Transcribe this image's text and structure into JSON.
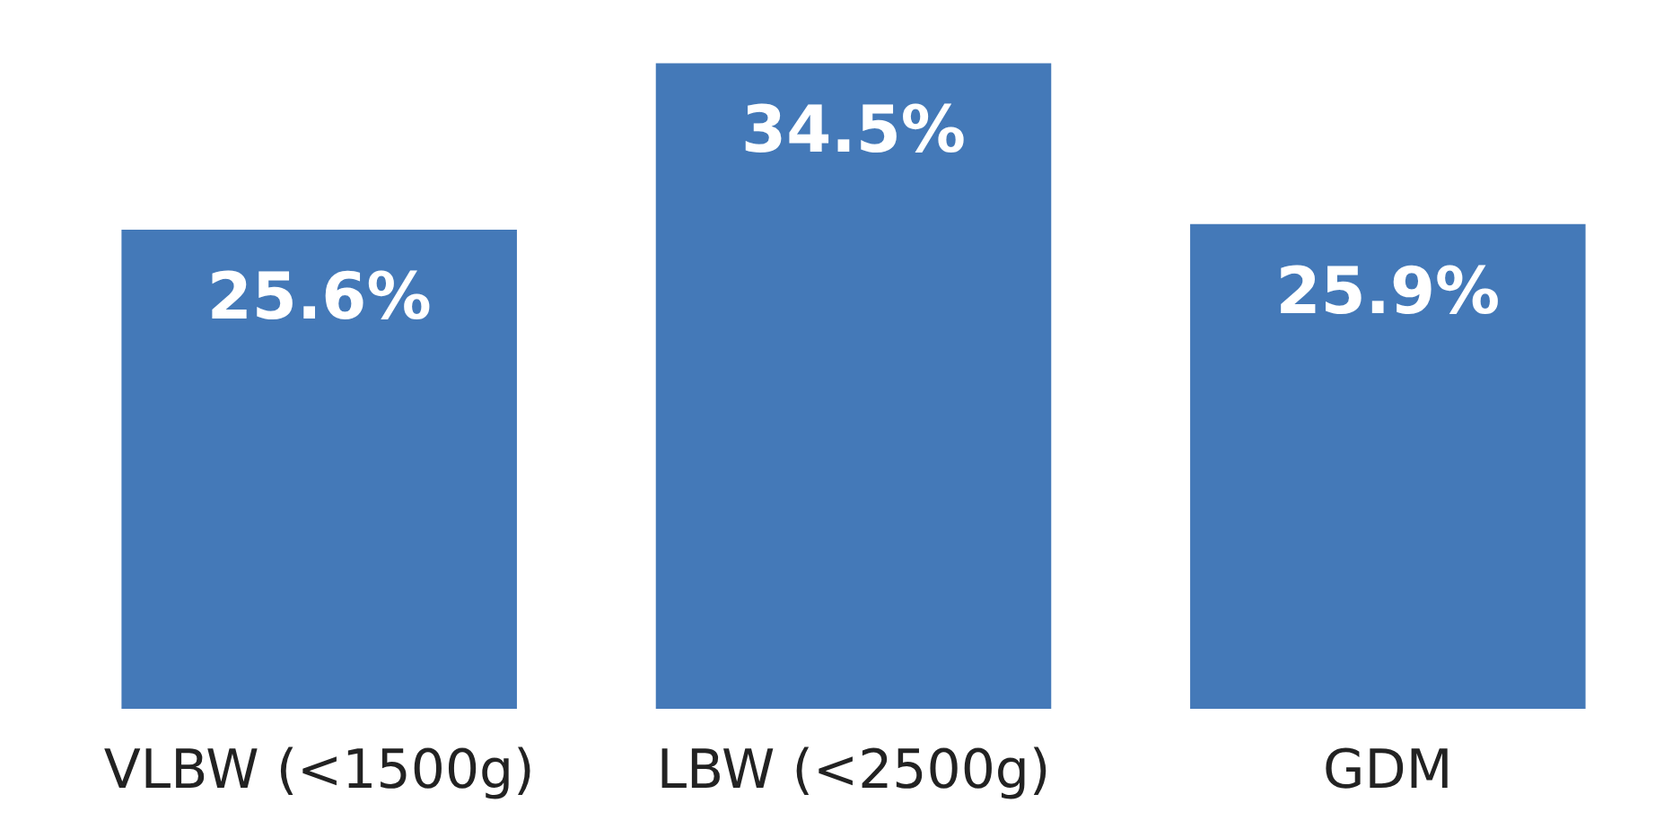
{
  "chart_data": {
    "type": "bar",
    "categories": [
      "VLBW (<1500g)",
      "LBW (<2500g)",
      "GDM"
    ],
    "values": [
      25.6,
      34.5,
      25.9
    ],
    "value_labels": [
      "25.6%",
      "34.5%",
      "25.9%"
    ],
    "color": "#4479b8",
    "tick_labels": "x",
    "grid": false,
    "legend": false
  }
}
